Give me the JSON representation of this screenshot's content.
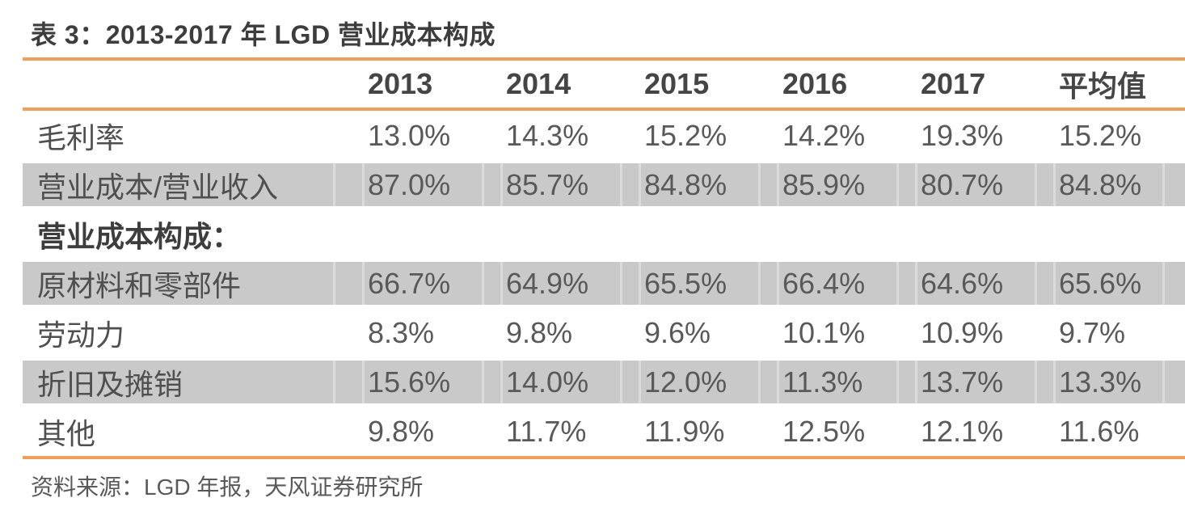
{
  "title": "表 3：2013-2017 年 LGD 营业成本构成",
  "source": "资料来源：LGD 年报，天风证券研究所",
  "colors": {
    "accent_rule": "#F09E58",
    "row_shade": "#C9C9C9",
    "cell_divider": "#DBDBDB",
    "title_text": "#3D3D3D",
    "header_text": "#454545",
    "body_text": "#595959",
    "background": "#FFFFFF"
  },
  "chart_data": {
    "type": "table",
    "title": "表 3：2013-2017 年 LGD 营业成本构成",
    "columns": [
      "",
      "2013",
      "2014",
      "2015",
      "2016",
      "2017",
      "平均值"
    ],
    "rows": [
      {
        "label": "毛利率",
        "values": [
          "13.0%",
          "14.3%",
          "15.2%",
          "14.2%",
          "19.3%",
          "15.2%"
        ],
        "shaded": false,
        "bold": false
      },
      {
        "label": "营业成本/营业收入",
        "values": [
          "87.0%",
          "85.7%",
          "84.8%",
          "85.9%",
          "80.7%",
          "84.8%"
        ],
        "shaded": true,
        "bold": false
      },
      {
        "label": "营业成本构成：",
        "values": [
          "",
          "",
          "",
          "",
          "",
          ""
        ],
        "shaded": false,
        "bold": true
      },
      {
        "label": "原材料和零部件",
        "values": [
          "66.7%",
          "64.9%",
          "65.5%",
          "66.4%",
          "64.6%",
          "65.6%"
        ],
        "shaded": true,
        "bold": false
      },
      {
        "label": "劳动力",
        "values": [
          "8.3%",
          "9.8%",
          "9.6%",
          "10.1%",
          "10.9%",
          "9.7%"
        ],
        "shaded": false,
        "bold": false
      },
      {
        "label": "折旧及摊销",
        "values": [
          "15.6%",
          "14.0%",
          "12.0%",
          "11.3%",
          "13.7%",
          "13.3%"
        ],
        "shaded": true,
        "bold": false
      },
      {
        "label": "其他",
        "values": [
          "9.8%",
          "11.7%",
          "11.9%",
          "12.5%",
          "12.1%",
          "11.6%"
        ],
        "shaded": false,
        "bold": false
      }
    ]
  }
}
